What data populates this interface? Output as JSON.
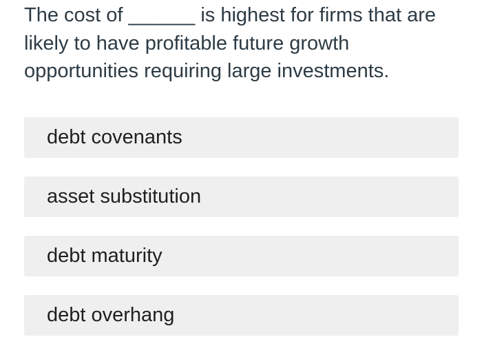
{
  "question": {
    "text": "The cost of ______ is highest for firms that are likely to have profitable future growth opportunities requiring large investments."
  },
  "options": [
    {
      "label": "debt covenants"
    },
    {
      "label": "asset substitution"
    },
    {
      "label": "debt maturity"
    },
    {
      "label": "debt overhang"
    }
  ],
  "colors": {
    "question_text": "#2d3b45",
    "option_text": "#1f1f1f",
    "option_background": "#efefef",
    "page_background": "#ffffff"
  }
}
